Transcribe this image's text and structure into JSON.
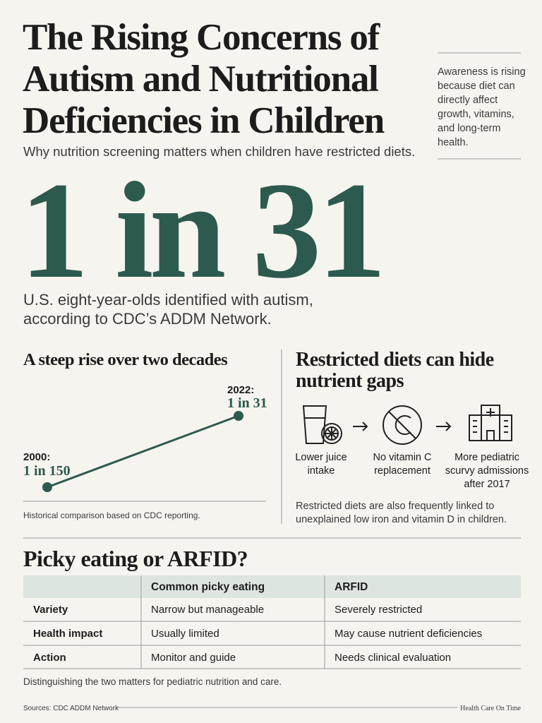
{
  "header": {
    "title_lines": [
      "The Rising Concerns of",
      "Autism and Nutritional",
      "Deficiencies in Children"
    ],
    "subtitle": "Why nutrition screening matters when children have restricted diets."
  },
  "sidebar": {
    "text_lines": [
      "Awareness is rising",
      "because diet can",
      "directly affect",
      "growth, vitamins,",
      "and long-term",
      "health."
    ]
  },
  "hero": {
    "stat": "1 in 31",
    "caption_lines": [
      "U.S. eight-year-olds identified with autism,",
      "according to CDC’s ADDM Network."
    ]
  },
  "trend": {
    "heading": "A steep rise over two decades",
    "start": {
      "label": "2000:",
      "value": "1 in 150"
    },
    "end": {
      "label": "2022:",
      "value": "1 in 31"
    },
    "note": "Historical comparison based on CDC reporting."
  },
  "diets": {
    "heading_lines": [
      "Restricted diets can hide",
      "nutrient gaps"
    ],
    "steps": [
      {
        "label_lines": [
          "Lower juice",
          "intake"
        ]
      },
      {
        "label_lines": [
          "No vitamin C",
          "replacement"
        ]
      },
      {
        "label_lines": [
          "More pediatric",
          "scurvy admissions",
          "after 2017"
        ]
      }
    ],
    "note_lines": [
      "Restricted diets are also frequently linked to",
      "unexplained low iron and vitamin D in children."
    ]
  },
  "comparison": {
    "heading": "Picky eating or ARFID?",
    "columns": [
      "Common picky eating",
      "ARFID"
    ],
    "rows": [
      [
        "Variety",
        "Narrow but manageable",
        "Severely restricted"
      ],
      [
        "Health impact",
        "Usually limited",
        "May cause nutrient deficiencies"
      ],
      [
        "Action",
        "Monitor and guide",
        "Needs clinical evaluation"
      ]
    ],
    "note": "Distinguishing the two matters for pediatric nutrition and care."
  },
  "footer": {
    "source": "Sources: CDC ADDM Network",
    "brand": "Health Care On Time"
  }
}
